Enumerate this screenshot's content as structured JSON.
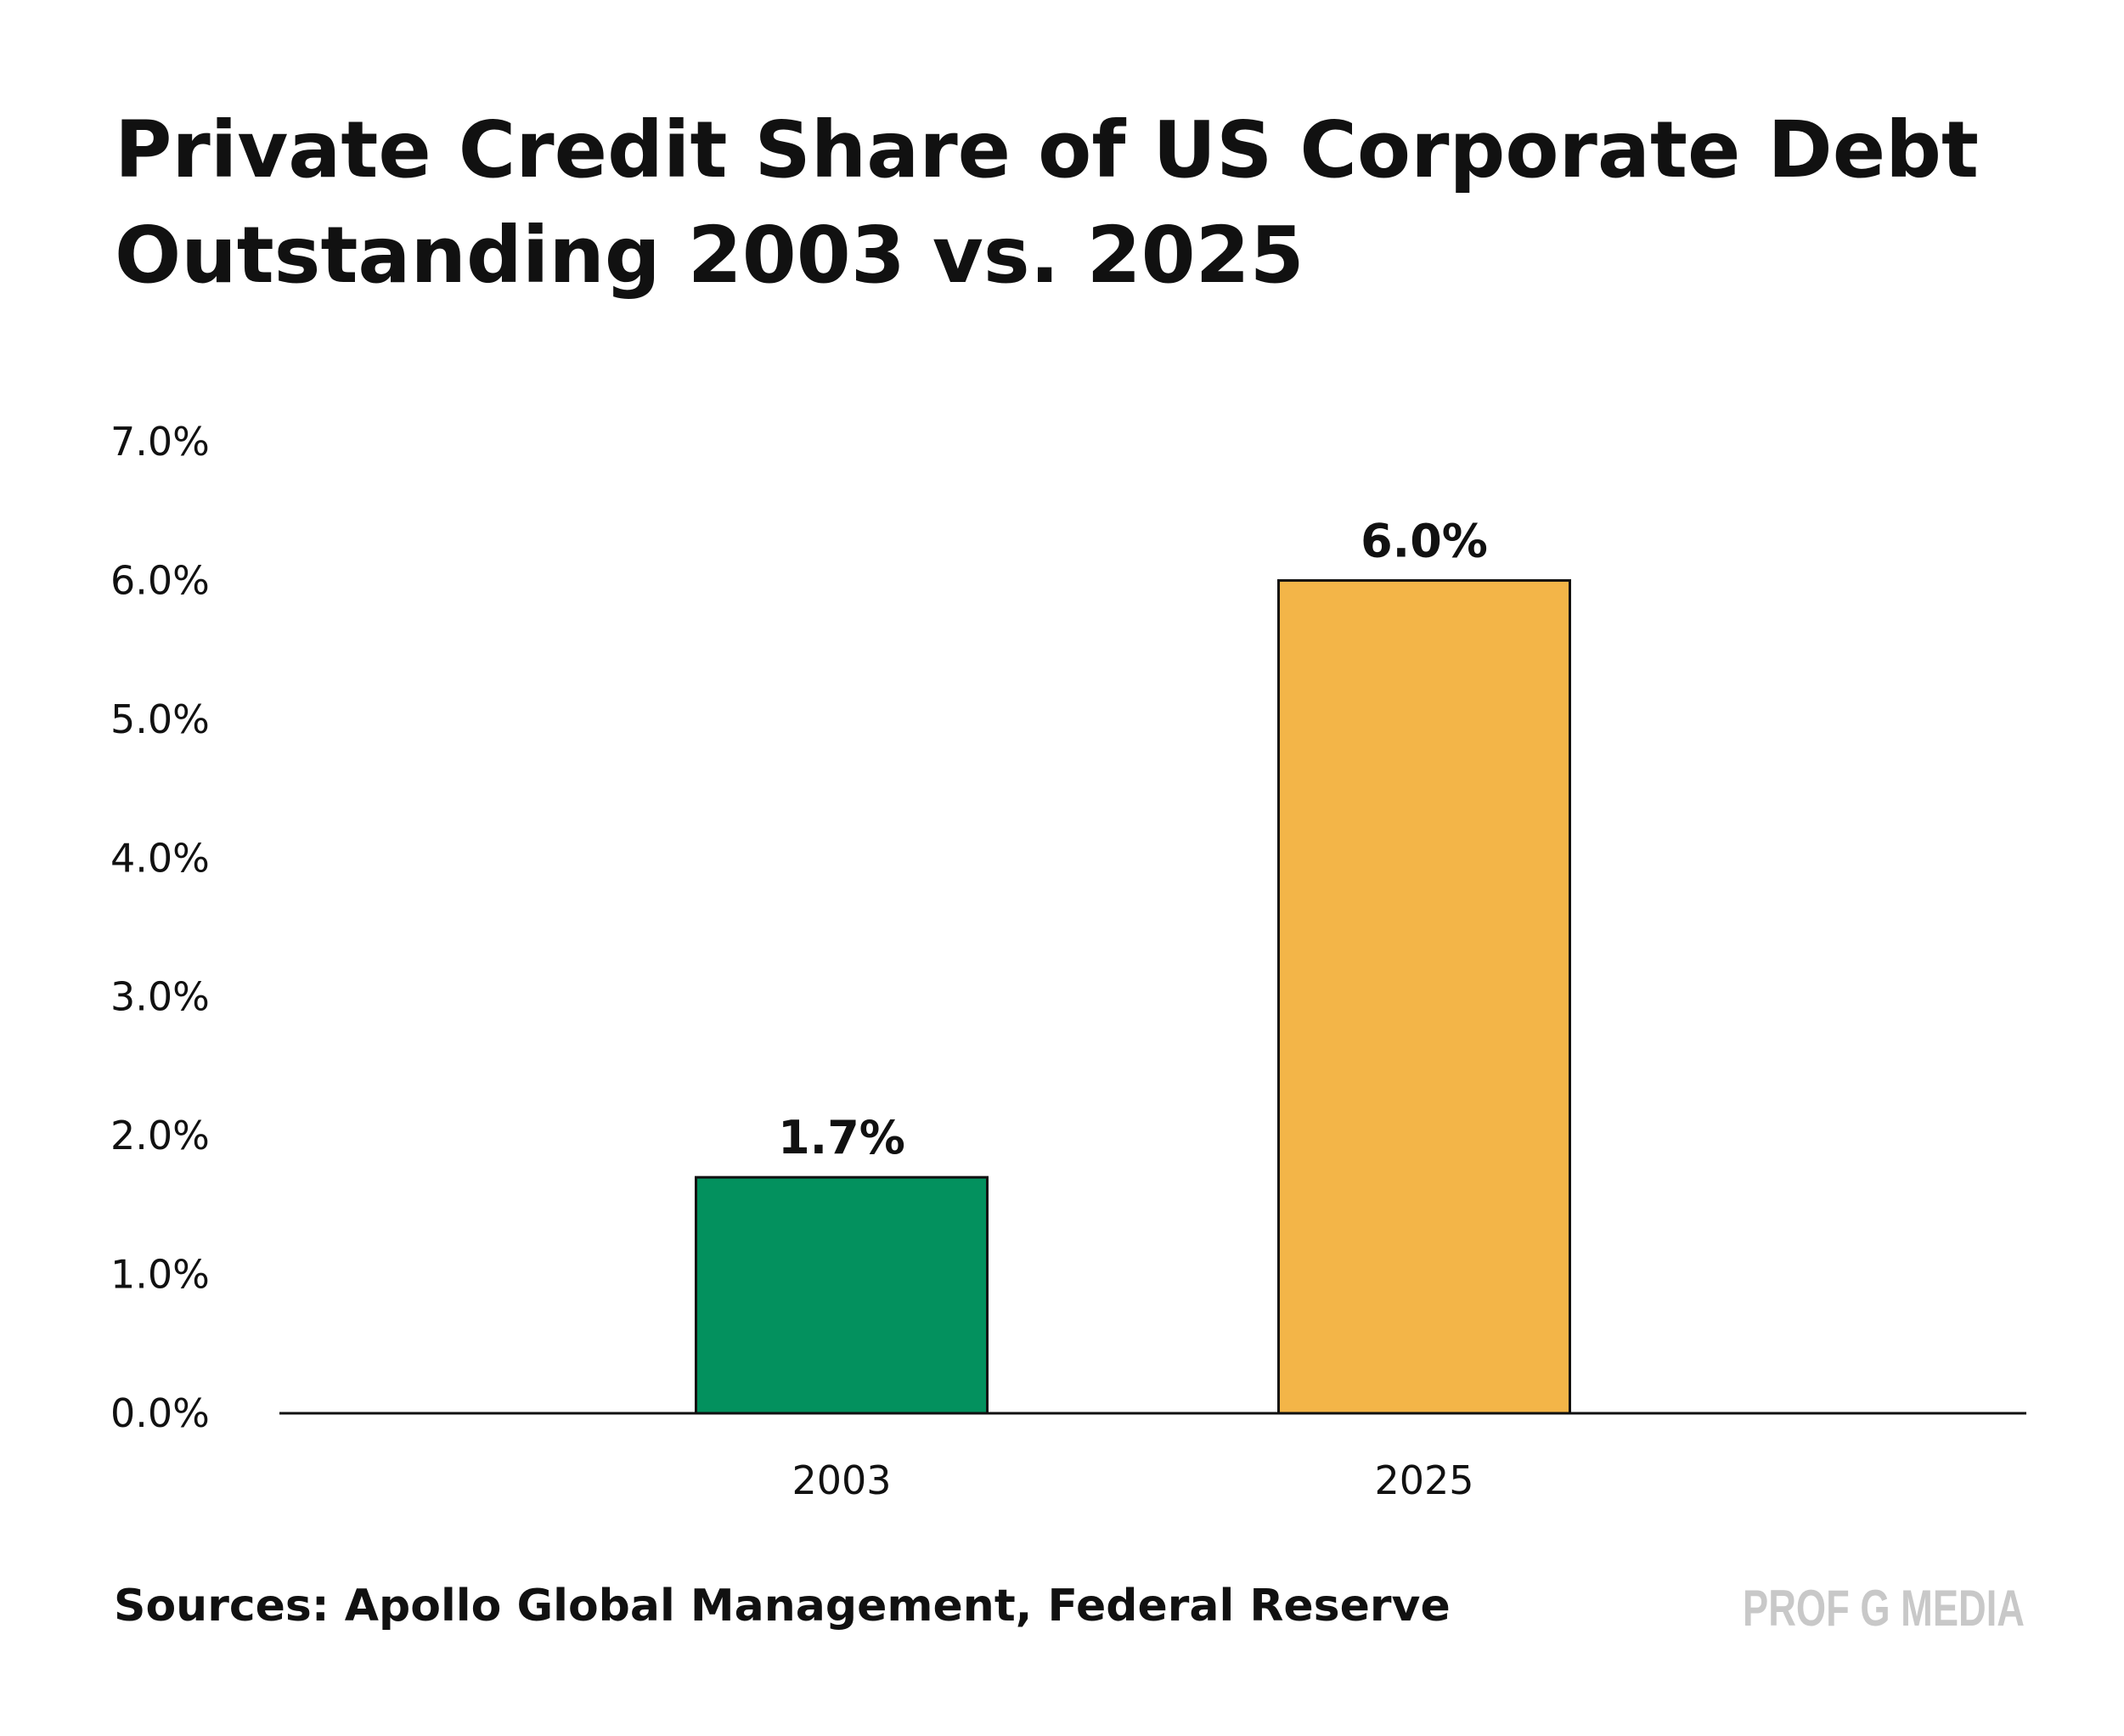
{
  "chart_data": {
    "type": "bar",
    "title": [
      "Private Credit Share of US Corporate Debt",
      "Outstanding 2003 vs. 2025"
    ],
    "categories": [
      "2003",
      "2025"
    ],
    "values": [
      1.7,
      6.0
    ],
    "value_labels": [
      "1.7%",
      "6.0%"
    ],
    "colors": [
      "#03915e",
      "#f3b548"
    ],
    "ylim": [
      0,
      7
    ],
    "yticks": [
      {
        "value": 0,
        "label": "0.0%"
      },
      {
        "value": 1,
        "label": "1.0%"
      },
      {
        "value": 2,
        "label": "2.0%"
      },
      {
        "value": 3,
        "label": "3.0%"
      },
      {
        "value": 4,
        "label": "4.0%"
      },
      {
        "value": 5,
        "label": "5.0%"
      },
      {
        "value": 6,
        "label": "6.0%"
      },
      {
        "value": 7,
        "label": "7.0%"
      }
    ],
    "grid": false,
    "source": "Sources: Apollo Global Management, Federal Reserve",
    "watermark": "PROF G MEDIA"
  }
}
